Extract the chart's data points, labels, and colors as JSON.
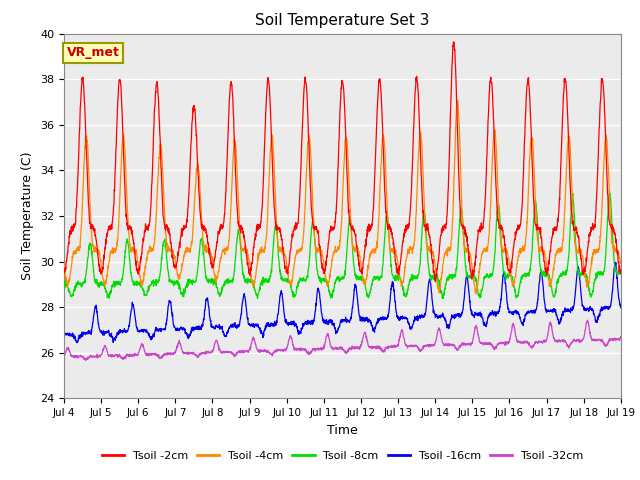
{
  "title": "Soil Temperature Set 3",
  "xlabel": "Time",
  "ylabel": "Soil Temperature (C)",
  "ylim": [
    24,
    40
  ],
  "yticks": [
    24,
    26,
    28,
    30,
    32,
    34,
    36,
    38,
    40
  ],
  "xtick_labels": [
    "Jul 4",
    "Jul 5",
    "Jul 6",
    "Jul 7",
    "Jul 8",
    "Jul 9",
    "Jul 10",
    "Jul 11",
    "Jul 12",
    "Jul 13",
    "Jul 14",
    "Jul 15",
    "Jul 16",
    "Jul 17",
    "Jul 18",
    "Jul 19"
  ],
  "colors": {
    "Tsoil -2cm": "#ff0000",
    "Tsoil -4cm": "#ff8800",
    "Tsoil -8cm": "#00dd00",
    "Tsoil -16cm": "#0000ee",
    "Tsoil -32cm": "#cc44cc"
  },
  "bg_color": "#ebebeb",
  "annotation_text": "VR_met",
  "annotation_box_color": "#ffffbb",
  "annotation_box_edge": "#999900"
}
